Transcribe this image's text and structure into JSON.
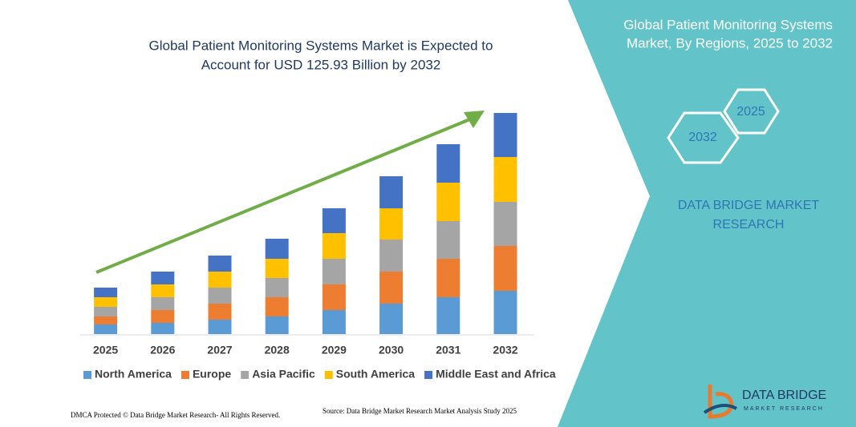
{
  "chart_data": {
    "type": "bar",
    "stacked": true,
    "title": [
      "Global Patient Monitoring Systems Market is Expected to",
      "Account for USD 125.93 Billion by 2032"
    ],
    "categories": [
      "2025",
      "2026",
      "2027",
      "2028",
      "2029",
      "2030",
      "2031",
      "2032"
    ],
    "series": [
      {
        "name": "North America",
        "color": "#5b9bd5",
        "values": [
          12,
          14,
          18,
          22,
          30,
          38,
          46,
          54
        ]
      },
      {
        "name": "Europe",
        "color": "#ed7d31",
        "values": [
          10,
          16,
          20,
          24,
          32,
          40,
          48,
          56
        ]
      },
      {
        "name": "Asia Pacific",
        "color": "#a5a5a5",
        "values": [
          12,
          16,
          20,
          24,
          32,
          40,
          47,
          55
        ]
      },
      {
        "name": "South America",
        "color": "#ffc000",
        "values": [
          12,
          16,
          20,
          24,
          32,
          39,
          48,
          56
        ]
      },
      {
        "name": "Middle East and Africa",
        "color": "#4472c4",
        "values": [
          12,
          16,
          20,
          25,
          31,
          40,
          48,
          55
        ]
      }
    ],
    "legend": "bottom"
  },
  "panel": {
    "title": [
      "Global Patient Monitoring Systems",
      "Market, By Regions, 2025 to 2032"
    ],
    "hexagons": [
      "2025",
      "2032"
    ],
    "brand": [
      "DATA BRIDGE MARKET",
      "RESEARCH"
    ]
  },
  "logo": {
    "name": "DATA BRIDGE",
    "tagline": "MARKET RESEARCH"
  },
  "footer": {
    "left": "DMCA Protected © Data Bridge Market Research- All Rights Reserved.",
    "right": "Source: Data Bridge Market Research Market Analysis Study 2025"
  }
}
